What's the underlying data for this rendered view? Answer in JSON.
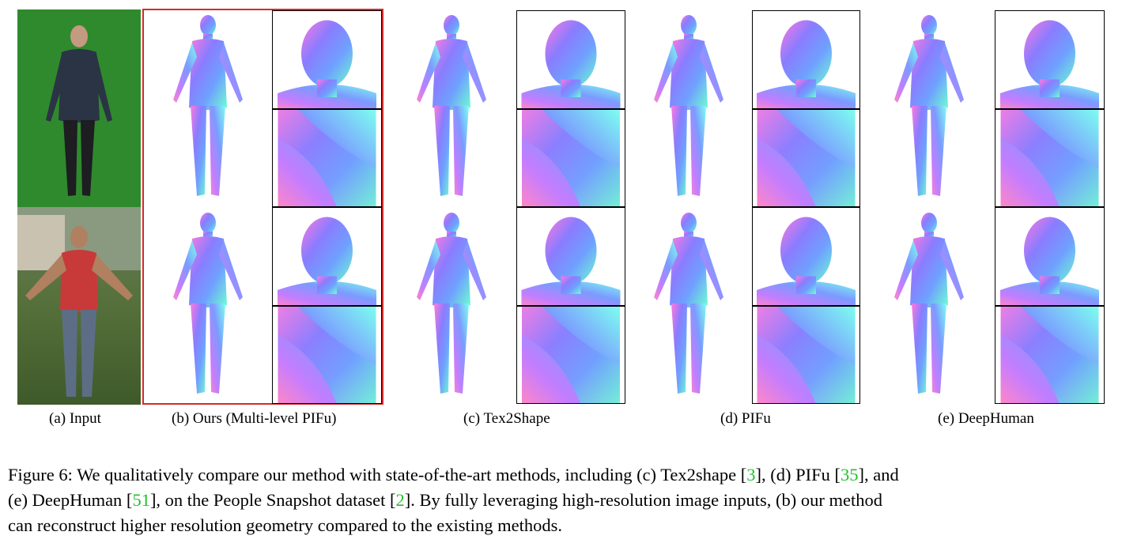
{
  "labels": {
    "a": "(a) Input",
    "b": "(b) Ours (Multi-level PIFu)",
    "c": "(c) Tex2Shape",
    "d": "(d) PIFu",
    "e": "(e) DeepHuman"
  },
  "caption": {
    "prefix": "Figure 6: We qualitatively compare our method with state-of-the-art methods, including (c) Tex2shape [",
    "ref1": "3",
    "mid1": "], (d) PIFu [",
    "ref2": "35",
    "mid2": "], and",
    "line2_start": "(e) DeepHuman [",
    "ref3": "51",
    "mid3": "], on the People Snapshot dataset [",
    "ref4": "2",
    "mid4": "]. By fully leveraging high-resolution image inputs, (b) our method",
    "line3": "can reconstruct higher resolution geometry compared to the existing methods."
  },
  "colors": {
    "highlight_border": "#d42a2a",
    "citation": "#22c02a",
    "green_screen": "#2f8a2d"
  }
}
